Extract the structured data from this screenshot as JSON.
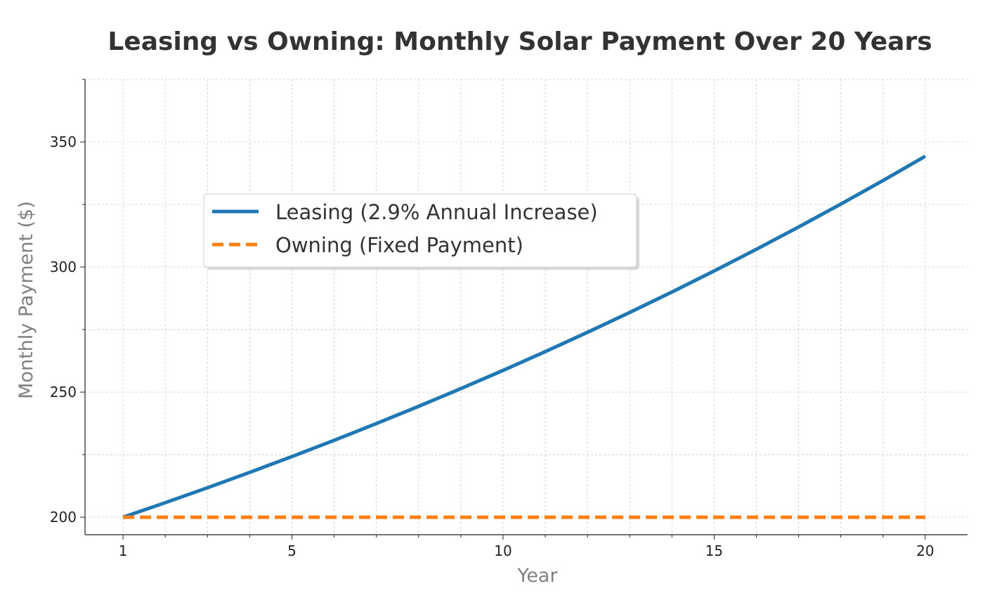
{
  "chart_data": {
    "type": "line",
    "title": "Leasing vs Owning: Monthly Solar Payment Over 20 Years",
    "xlabel": "Year",
    "ylabel": "Monthly Payment ($)",
    "xlim": [
      0.1,
      21
    ],
    "ylim": [
      193,
      375
    ],
    "xticks": [
      1,
      5,
      10,
      15,
      20
    ],
    "yticks": [
      200,
      250,
      300,
      350
    ],
    "grid": true,
    "legend_position": "upper-left-center",
    "x": [
      1,
      2,
      3,
      4,
      5,
      6,
      7,
      8,
      9,
      10,
      11,
      12,
      13,
      14,
      15,
      16,
      17,
      18,
      19,
      20
    ],
    "series": [
      {
        "name": "Leasing (2.9% Annual Increase)",
        "color": "#1f77b4",
        "style": "solid",
        "values": [
          200.0,
          205.8,
          211.77,
          217.91,
          224.23,
          230.73,
          237.42,
          244.3,
          251.39,
          258.68,
          266.18,
          273.9,
          281.84,
          290.02,
          298.43,
          307.08,
          315.99,
          325.15,
          334.58,
          344.29
        ]
      },
      {
        "name": "Owning (Fixed Payment)",
        "color": "#ff7f0e",
        "style": "dashed",
        "values": [
          200,
          200,
          200,
          200,
          200,
          200,
          200,
          200,
          200,
          200,
          200,
          200,
          200,
          200,
          200,
          200,
          200,
          200,
          200,
          200
        ]
      }
    ]
  }
}
